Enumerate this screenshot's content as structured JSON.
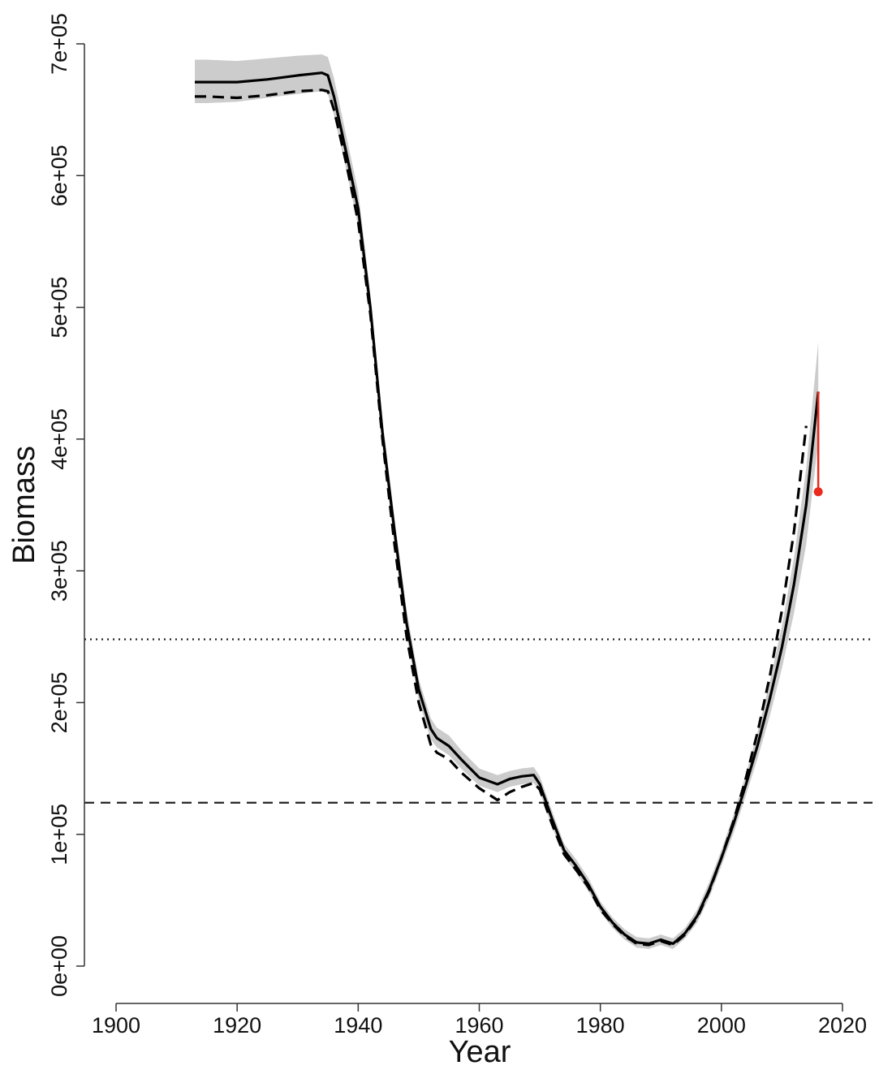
{
  "chart_data": {
    "type": "line",
    "xlabel": "Year",
    "ylabel": "Biomass",
    "xlim": [
      1900,
      2020
    ],
    "ylim": [
      0,
      700000
    ],
    "x_ticks": [
      1900,
      1920,
      1940,
      1960,
      1980,
      2000,
      2020
    ],
    "x_tick_labels": [
      "1900",
      "1920",
      "1940",
      "1960",
      "1980",
      "2000",
      "2020"
    ],
    "y_ticks": [
      0,
      100000,
      200000,
      300000,
      400000,
      500000,
      600000,
      700000
    ],
    "y_tick_labels": [
      "0e+00",
      "1e+05",
      "2e+05",
      "3e+05",
      "4e+05",
      "5e+05",
      "6e+05",
      "7e+05"
    ],
    "grid": false,
    "legend": "none",
    "colors": {
      "solid": "#000000",
      "dashed": "#000000",
      "band": "#cccccc",
      "projection": "#e8291c"
    },
    "series": [
      {
        "line_style": "solid",
        "x": [
          1913,
          1915,
          1920,
          1925,
          1930,
          1934,
          1935,
          1936,
          1938,
          1940,
          1942,
          1944,
          1946,
          1948,
          1950,
          1952,
          1953,
          1955,
          1957,
          1960,
          1963,
          1965,
          1967,
          1969,
          1970,
          1972,
          1974,
          1976,
          1978,
          1980,
          1982,
          1984,
          1986,
          1988,
          1990,
          1992,
          1994,
          1996,
          1998,
          2000,
          2002,
          2004,
          2006,
          2008,
          2010,
          2012,
          2014,
          2016
        ],
        "y": [
          671000,
          671000,
          671000,
          673000,
          676000,
          678000,
          676000,
          660000,
          618000,
          575000,
          500000,
          405000,
          330000,
          260000,
          210000,
          180000,
          173000,
          167000,
          157000,
          143000,
          138000,
          142000,
          144000,
          145000,
          138000,
          112000,
          88000,
          76000,
          62000,
          45000,
          33000,
          24000,
          18000,
          17000,
          20000,
          17000,
          25000,
          38000,
          58000,
          82000,
          108000,
          137000,
          168000,
          203000,
          242000,
          290000,
          350000,
          436000
        ]
      },
      {
        "line_style": "dashed",
        "x": [
          1913,
          1915,
          1920,
          1925,
          1930,
          1934,
          1935,
          1936,
          1938,
          1940,
          1942,
          1944,
          1946,
          1948,
          1950,
          1952,
          1953,
          1955,
          1957,
          1960,
          1963,
          1965,
          1967,
          1969,
          1970,
          1972,
          1974,
          1976,
          1978,
          1980,
          1982,
          1984,
          1986,
          1988,
          1990,
          1992,
          1994,
          1996,
          1998,
          2000,
          2002,
          2004,
          2006,
          2008,
          2010,
          2012,
          2014
        ],
        "y": [
          660000,
          660000,
          659000,
          661000,
          664000,
          665000,
          664000,
          650000,
          610000,
          565000,
          495000,
          400000,
          320000,
          250000,
          200000,
          168000,
          162000,
          157000,
          147000,
          135000,
          126000,
          132000,
          136000,
          139000,
          134000,
          108000,
          85000,
          73000,
          60000,
          43000,
          32000,
          23000,
          17000,
          16000,
          19000,
          16000,
          24000,
          37000,
          57000,
          82000,
          110000,
          142000,
          178000,
          220000,
          270000,
          330000,
          410000
        ]
      }
    ],
    "uncertainty_band": {
      "x": [
        1913,
        1915,
        1920,
        1925,
        1930,
        1934,
        1935,
        1936,
        1938,
        1940,
        1942,
        1944,
        1946,
        1948,
        1950,
        1952,
        1953,
        1955,
        1957,
        1960,
        1963,
        1965,
        1967,
        1969,
        1970,
        1972,
        1974,
        1976,
        1978,
        1980,
        1982,
        1984,
        1986,
        1988,
        1990,
        1992,
        1994,
        1996,
        1998,
        2000,
        2002,
        2004,
        2006,
        2008,
        2010,
        2012,
        2014,
        2016
      ],
      "lower": [
        655000,
        655000,
        656000,
        659000,
        662000,
        664000,
        662000,
        646000,
        605000,
        562000,
        490000,
        395000,
        320000,
        250000,
        202000,
        172000,
        166000,
        160000,
        150000,
        137000,
        132000,
        136000,
        138000,
        139000,
        132000,
        106000,
        83000,
        71000,
        57000,
        41000,
        29000,
        20000,
        14000,
        13000,
        16000,
        13000,
        21000,
        33000,
        52000,
        76000,
        101000,
        129000,
        158000,
        190000,
        226000,
        268000,
        320000,
        398000
      ],
      "upper": [
        688000,
        688000,
        687000,
        689000,
        691000,
        692000,
        690000,
        674000,
        631000,
        588000,
        510000,
        415000,
        340000,
        270000,
        218000,
        188000,
        181000,
        175000,
        164000,
        150000,
        145000,
        148000,
        150000,
        151000,
        144000,
        118000,
        93000,
        81000,
        67000,
        49000,
        37000,
        28000,
        22000,
        21000,
        24000,
        21000,
        29000,
        43000,
        64000,
        88000,
        115000,
        145000,
        178000,
        216000,
        258000,
        310000,
        378000,
        474000
      ]
    },
    "reference_lines": [
      {
        "y": 248000,
        "line_style": "dotted"
      },
      {
        "y": 124000,
        "line_style": "dashed"
      }
    ],
    "projection": {
      "x": 2016,
      "y_from": 436000,
      "y_to": 360000
    }
  }
}
